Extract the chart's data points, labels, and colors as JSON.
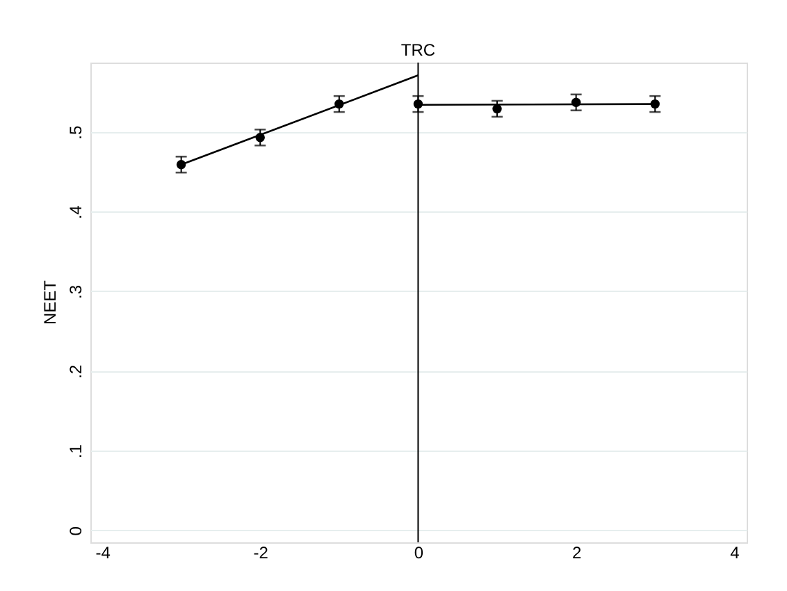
{
  "chart_data": {
    "type": "scatter",
    "ylabel": "NEET",
    "series": [
      {
        "marker": "circle",
        "color": "#000000",
        "x": [
          -3,
          -2,
          -1,
          0,
          1,
          2,
          3
        ],
        "values": [
          0.459,
          0.493,
          0.535,
          0.535,
          0.529,
          0.537,
          0.535
        ],
        "errors": [
          0.01,
          0.01,
          0.01,
          0.01,
          0.01,
          0.01,
          0.01
        ]
      },
      {
        "type": "line",
        "line_style": "solid",
        "color": "#000000",
        "x": [
          -3,
          0
        ],
        "values": [
          0.459,
          0.571
        ]
      },
      {
        "type": "line",
        "line_style": "solid",
        "color": "#000000",
        "x": [
          0,
          3
        ],
        "values": [
          0.534,
          0.535
        ]
      }
    ],
    "xlim": [
      -4.15,
      4.16
    ],
    "xticks": [
      -4,
      -2,
      0,
      2,
      4
    ],
    "ylim": [
      -0.015,
      0.587
    ],
    "yticks": [
      {
        "value": 0,
        "label": "0"
      },
      {
        "value": 0.1,
        "label": ".1"
      },
      {
        "value": 0.2,
        "label": ".2"
      },
      {
        "value": 0.3,
        "label": ".3"
      },
      {
        "value": 0.4,
        "label": ".4"
      },
      {
        "value": 0.5,
        "label": ".5"
      }
    ],
    "grid": "y",
    "ref_lines": [
      {
        "axis": "x",
        "value": 0,
        "label": "TRC",
        "color": "#000000"
      }
    ]
  }
}
